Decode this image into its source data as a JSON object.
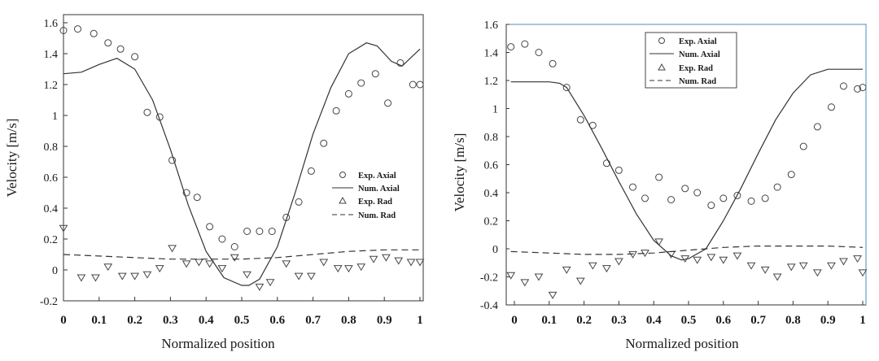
{
  "chart_data": [
    {
      "type": "line",
      "xlabel": "Normalized position",
      "ylabel": "Velocity [m/s]",
      "xlim": [
        0,
        1
      ],
      "ylim": [
        -0.2,
        1.6
      ],
      "xticks": [
        "0",
        "0.1",
        "0.2",
        "0.3",
        "0.4",
        "0.5",
        "0.6",
        "0.7",
        "0.8",
        "0.9",
        "1"
      ],
      "yticks": [
        "-0.2",
        "0",
        "0.2",
        "0.4",
        "0.6",
        "0.8",
        "1",
        "1.2",
        "1.4",
        "1.6"
      ],
      "grid": false,
      "legend_position": "center-right",
      "series": [
        {
          "name": "Exp. Axial",
          "marker": "circle",
          "x": [
            0,
            0.04,
            0.085,
            0.125,
            0.16,
            0.2,
            0.235,
            0.27,
            0.305,
            0.345,
            0.375,
            0.41,
            0.445,
            0.48,
            0.515,
            0.55,
            0.585,
            0.625,
            0.66,
            0.695,
            0.73,
            0.765,
            0.8,
            0.835,
            0.875,
            0.91,
            0.945,
            0.98,
            1.0
          ],
          "y": [
            1.55,
            1.56,
            1.53,
            1.47,
            1.43,
            1.38,
            1.02,
            0.99,
            0.71,
            0.5,
            0.47,
            0.28,
            0.2,
            0.15,
            0.25,
            0.25,
            0.25,
            0.34,
            0.44,
            0.64,
            0.82,
            1.03,
            1.14,
            1.21,
            1.27,
            1.08,
            1.34,
            1.2,
            1.2
          ]
        },
        {
          "name": "Num. Axial",
          "line": "solid",
          "x": [
            0,
            0.05,
            0.1,
            0.15,
            0.2,
            0.25,
            0.3,
            0.35,
            0.4,
            0.45,
            0.5,
            0.52,
            0.55,
            0.6,
            0.65,
            0.7,
            0.75,
            0.8,
            0.85,
            0.88,
            0.92,
            0.95,
            1.0
          ],
          "y": [
            1.27,
            1.28,
            1.33,
            1.37,
            1.3,
            1.1,
            0.78,
            0.42,
            0.12,
            -0.05,
            -0.1,
            -0.1,
            -0.06,
            0.15,
            0.5,
            0.88,
            1.18,
            1.4,
            1.47,
            1.45,
            1.35,
            1.32,
            1.43
          ]
        },
        {
          "name": "Exp. Rad",
          "marker": "triangle-down",
          "x": [
            0,
            0.05,
            0.09,
            0.125,
            0.165,
            0.2,
            0.235,
            0.27,
            0.305,
            0.345,
            0.38,
            0.41,
            0.445,
            0.48,
            0.515,
            0.55,
            0.58,
            0.625,
            0.66,
            0.695,
            0.73,
            0.77,
            0.8,
            0.835,
            0.87,
            0.905,
            0.94,
            0.975,
            1.0
          ],
          "y": [
            0.27,
            -0.05,
            -0.05,
            0.02,
            -0.04,
            -0.04,
            -0.03,
            0.01,
            0.14,
            0.04,
            0.05,
            0.04,
            0.01,
            0.08,
            -0.03,
            -0.11,
            -0.08,
            0.04,
            -0.04,
            -0.04,
            0.05,
            0.01,
            0.01,
            0.02,
            0.07,
            0.08,
            0.06,
            0.05,
            0.05
          ]
        },
        {
          "name": "Num. Rad",
          "line": "dashed",
          "x": [
            0,
            0.1,
            0.2,
            0.3,
            0.4,
            0.5,
            0.6,
            0.7,
            0.8,
            0.9,
            1.0
          ],
          "y": [
            0.1,
            0.09,
            0.08,
            0.07,
            0.07,
            0.07,
            0.08,
            0.1,
            0.12,
            0.13,
            0.13
          ]
        }
      ]
    },
    {
      "type": "line",
      "xlabel": "Normalized position",
      "ylabel": "Velocity [m/s]",
      "xlim": [
        0,
        1
      ],
      "ylim": [
        -0.4,
        1.6
      ],
      "xticks": [
        "0",
        "0.1",
        "0.2",
        "0.3",
        "0.4",
        "0.5",
        "0.6",
        "0.7",
        "0.8",
        "0.9",
        "1"
      ],
      "yticks": [
        "-0.4",
        "-0.2",
        "0",
        "0.2",
        "0.4",
        "0.6",
        "0.8",
        "1",
        "1.2",
        "1.4",
        "1.6"
      ],
      "grid": false,
      "legend_position": "top-left",
      "series": [
        {
          "name": "Exp. Axial",
          "marker": "circle",
          "x": [
            -0.01,
            0.03,
            0.07,
            0.11,
            0.15,
            0.19,
            0.225,
            0.265,
            0.3,
            0.34,
            0.375,
            0.415,
            0.45,
            0.49,
            0.525,
            0.565,
            0.6,
            0.64,
            0.68,
            0.72,
            0.755,
            0.795,
            0.83,
            0.87,
            0.91,
            0.945,
            0.985,
            1.0
          ],
          "y": [
            1.44,
            1.46,
            1.4,
            1.32,
            1.15,
            0.92,
            0.88,
            0.61,
            0.56,
            0.44,
            0.36,
            0.51,
            0.35,
            0.43,
            0.4,
            0.31,
            0.36,
            0.38,
            0.34,
            0.36,
            0.44,
            0.53,
            0.73,
            0.87,
            1.01,
            1.16,
            1.14,
            1.15
          ]
        },
        {
          "name": "Num. Axial",
          "line": "solid",
          "x": [
            -0.01,
            0.1,
            0.13,
            0.15,
            0.2,
            0.25,
            0.3,
            0.35,
            0.4,
            0.45,
            0.48,
            0.5,
            0.55,
            0.6,
            0.65,
            0.7,
            0.75,
            0.8,
            0.85,
            0.9,
            0.95,
            1.0
          ],
          "y": [
            1.19,
            1.19,
            1.18,
            1.15,
            0.95,
            0.72,
            0.48,
            0.25,
            0.06,
            -0.05,
            -0.08,
            -0.07,
            0.0,
            0.2,
            0.43,
            0.68,
            0.92,
            1.11,
            1.24,
            1.28,
            1.28,
            1.28
          ]
        },
        {
          "name": "Exp. Rad",
          "marker": "triangle-down",
          "x": [
            -0.01,
            0.03,
            0.07,
            0.11,
            0.15,
            0.19,
            0.225,
            0.265,
            0.3,
            0.34,
            0.375,
            0.415,
            0.45,
            0.49,
            0.525,
            0.565,
            0.6,
            0.64,
            0.68,
            0.72,
            0.755,
            0.795,
            0.83,
            0.87,
            0.91,
            0.945,
            0.985,
            1.0
          ],
          "y": [
            -0.19,
            -0.24,
            -0.2,
            -0.33,
            -0.15,
            -0.23,
            -0.12,
            -0.14,
            -0.09,
            -0.04,
            -0.03,
            0.05,
            -0.04,
            -0.07,
            -0.08,
            -0.06,
            -0.08,
            -0.05,
            -0.12,
            -0.15,
            -0.2,
            -0.13,
            -0.12,
            -0.17,
            -0.12,
            -0.09,
            -0.07,
            -0.17
          ]
        },
        {
          "name": "Num. Rad",
          "line": "dashed",
          "x": [
            -0.01,
            0.1,
            0.2,
            0.3,
            0.4,
            0.5,
            0.6,
            0.7,
            0.8,
            0.9,
            1.0
          ],
          "y": [
            -0.02,
            -0.03,
            -0.04,
            -0.04,
            -0.03,
            -0.01,
            0.01,
            0.02,
            0.02,
            0.02,
            0.01
          ]
        }
      ]
    }
  ]
}
